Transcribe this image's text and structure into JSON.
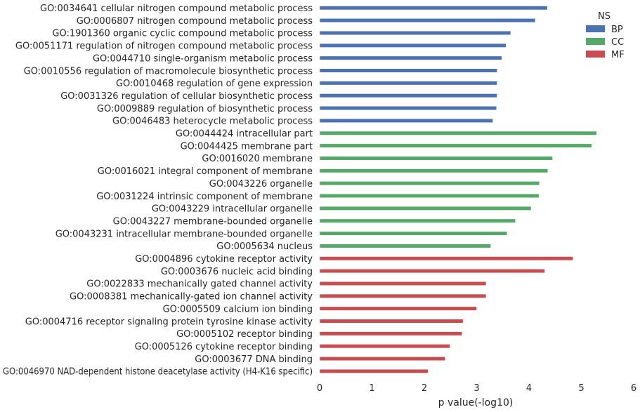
{
  "chart_data": {
    "type": "bar",
    "orientation": "horizontal",
    "xlabel": "p value(-log10)",
    "ylabel": "",
    "xlim": [
      0,
      6
    ],
    "x_ticks": [
      "0",
      "1",
      "2",
      "3",
      "4",
      "5",
      "6"
    ],
    "grid": false,
    "legend": {
      "title": "NS",
      "placement": "top-right",
      "entries": [
        {
          "name": "BP",
          "color": "#4c72b0"
        },
        {
          "name": "CC",
          "color": "#55a868"
        },
        {
          "name": "MF",
          "color": "#c44e52"
        }
      ]
    },
    "categories": [
      {
        "label": "GO:0034641 cellular nitrogen compound metabolic process",
        "value": 4.35,
        "group": "BP"
      },
      {
        "label": "GO:0006807 nitrogen compound metabolic process",
        "value": 4.12,
        "group": "BP"
      },
      {
        "label": "GO:1901360 organic cyclic compound metabolic process",
        "value": 3.65,
        "group": "BP"
      },
      {
        "label": "GO:0051171 regulation of nitrogen compound metabolic process",
        "value": 3.56,
        "group": "BP"
      },
      {
        "label": "GO:0044710 single-organism metabolic process",
        "value": 3.48,
        "group": "BP"
      },
      {
        "label": "GO:0010556 regulation of macromolecule biosynthetic process",
        "value": 3.39,
        "group": "BP"
      },
      {
        "label": "GO:0010468 regulation of gene expression",
        "value": 3.39,
        "group": "BP"
      },
      {
        "label": "GO:0031326 regulation of cellular biosynthetic process",
        "value": 3.39,
        "group": "BP"
      },
      {
        "label": "GO:0009889 regulation of biosynthetic process",
        "value": 3.38,
        "group": "BP"
      },
      {
        "label": "GO:0046483 heterocycle metabolic process",
        "value": 3.31,
        "group": "BP"
      },
      {
        "label": "GO:0044424 intracellular part",
        "value": 5.29,
        "group": "CC"
      },
      {
        "label": "GO:0044425 membrane part",
        "value": 5.2,
        "group": "CC"
      },
      {
        "label": "GO:0016020 membrane",
        "value": 4.45,
        "group": "CC"
      },
      {
        "label": "GO:0016021 integral component of membrane",
        "value": 4.36,
        "group": "CC"
      },
      {
        "label": "GO:0043226 organelle",
        "value": 4.2,
        "group": "CC"
      },
      {
        "label": "GO:0031224 intrinsic component of membrane",
        "value": 4.19,
        "group": "CC"
      },
      {
        "label": "GO:0043229 intracellular organelle",
        "value": 4.04,
        "group": "CC"
      },
      {
        "label": "GO:0043227 membrane-bounded organelle",
        "value": 3.74,
        "group": "CC"
      },
      {
        "label": "GO:0043231 intracellular membrane-bounded organelle",
        "value": 3.58,
        "group": "CC"
      },
      {
        "label": "GO:0005634 nucleus",
        "value": 3.27,
        "group": "CC"
      },
      {
        "label": "GO:0004896 cytokine receptor activity",
        "value": 4.84,
        "group": "MF"
      },
      {
        "label": "GO:0003676 nucleic acid binding",
        "value": 4.3,
        "group": "MF"
      },
      {
        "label": "GO:0022833 mechanically gated channel activity",
        "value": 3.18,
        "group": "MF"
      },
      {
        "label": "GO:0008381 mechanically-gated ion channel activity",
        "value": 3.18,
        "group": "MF"
      },
      {
        "label": "GO:0005509 calcium ion binding",
        "value": 3.0,
        "group": "MF"
      },
      {
        "label": "GO:0004716 receptor signaling protein tyrosine kinase activity",
        "value": 2.74,
        "group": "MF"
      },
      {
        "label": "GO:0005102 receptor binding",
        "value": 2.72,
        "group": "MF"
      },
      {
        "label": "GO:0005126 cytokine receptor binding",
        "value": 2.49,
        "group": "MF"
      },
      {
        "label": "GO:0003677 DNA binding",
        "value": 2.4,
        "group": "MF"
      },
      {
        "label": "GO:0046970 NAD-dependent histone deacetylase activity (H4-K16 specific)",
        "value": 2.07,
        "group": "MF"
      }
    ]
  }
}
